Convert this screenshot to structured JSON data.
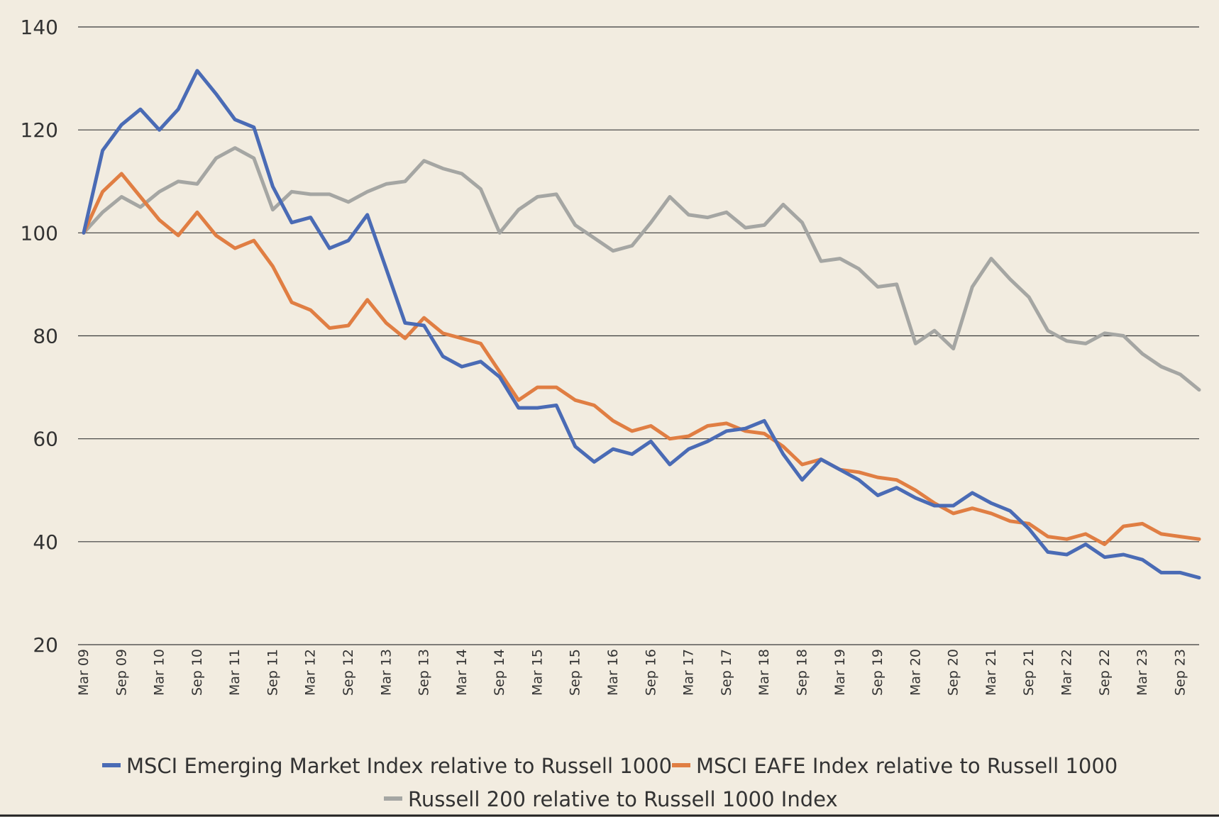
{
  "chart_data": {
    "type": "line",
    "title": "",
    "xlabel": "",
    "ylabel": "",
    "ylim": [
      20,
      140
    ],
    "yticks": [
      20,
      40,
      60,
      80,
      100,
      120,
      140
    ],
    "grid": "horizontal",
    "legend_position": "bottom",
    "x_tick_labels": [
      "Mar 09",
      "Sep 09",
      "Mar 10",
      "Sep 10",
      "Mar 11",
      "Sep 11",
      "Mar 12",
      "Sep 12",
      "Mar 13",
      "Sep 13",
      "Mar 14",
      "Sep 14",
      "Mar 15",
      "Sep 15",
      "Mar 16",
      "Sep 16",
      "Mar 17",
      "Sep 17",
      "Mar 18",
      "Sep 18",
      "Mar 19",
      "Sep 19",
      "Mar 20",
      "Sep 20",
      "Mar 21",
      "Sep 21",
      "Mar 22",
      "Sep 22",
      "Mar 23",
      "Sep 23"
    ],
    "x_period": "quarterly, Mar 2009 to Dec 2023",
    "series": [
      {
        "name": "MSCI Emerging Market Index relative to Russell 1000",
        "color": "#4a6bb5",
        "values": [
          100,
          116,
          121,
          124,
          120,
          124,
          131.5,
          127,
          122,
          120.5,
          109,
          102,
          103,
          97,
          98.5,
          103.5,
          93,
          82.5,
          82,
          76,
          74,
          75,
          72,
          66,
          66,
          66.5,
          58.5,
          55.5,
          58,
          57,
          59.5,
          55,
          58,
          59.5,
          61.5,
          62,
          63.5,
          57,
          52,
          56,
          54,
          52,
          49,
          50.5,
          48.5,
          47,
          47,
          49.5,
          47.5,
          46,
          42.5,
          38,
          37.5,
          39.5,
          37,
          37.5,
          36.5,
          34,
          34,
          33
        ]
      },
      {
        "name": "MSCI EAFE Index relative to Russell 1000",
        "color": "#e07e43",
        "values": [
          100,
          108,
          111.5,
          107,
          102.5,
          99.5,
          104,
          99.5,
          97,
          98.5,
          93.5,
          86.5,
          85,
          81.5,
          82,
          87,
          82.5,
          79.5,
          83.5,
          80.5,
          79.5,
          78.5,
          73,
          67.5,
          70,
          70,
          67.5,
          66.5,
          63.5,
          61.5,
          62.5,
          60,
          60.5,
          62.5,
          63,
          61.5,
          61,
          58.5,
          55,
          56,
          54,
          53.5,
          52.5,
          52,
          50,
          47.5,
          45.5,
          46.5,
          45.5,
          44,
          43.5,
          41,
          40.5,
          41.5,
          39.5,
          43,
          43.5,
          41.5,
          41,
          40.5
        ]
      },
      {
        "name": "Russell 200 relative to Russell 1000 Index",
        "color": "#a5a6a3",
        "values": [
          100,
          104,
          107,
          105,
          108,
          110,
          109.5,
          114.5,
          116.5,
          114.5,
          104.5,
          108,
          107.5,
          107.5,
          106,
          108,
          109.5,
          110,
          114,
          112.5,
          111.5,
          108.5,
          100,
          104.5,
          107,
          107.5,
          101.5,
          99,
          96.5,
          97.5,
          102,
          107,
          103.5,
          103,
          104,
          101,
          101.5,
          105.5,
          102,
          94.5,
          95,
          93,
          89.5,
          90,
          78.5,
          81,
          77.5,
          89.5,
          95,
          91,
          87.5,
          81,
          79,
          78.5,
          80.5,
          80,
          76.5,
          74,
          72.5,
          69.5
        ]
      }
    ]
  }
}
